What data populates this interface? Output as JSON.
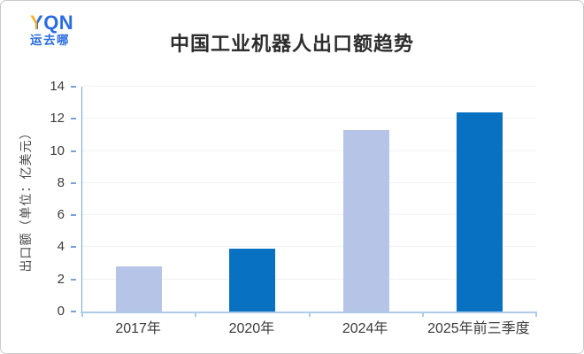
{
  "logo": {
    "mark_y": "Y",
    "mark_rest": "QN",
    "name_cn": "运去哪",
    "color_blue": "#2a6be2",
    "color_yellow": "#f5b226"
  },
  "header": {
    "title": "中国工业机器人出口额趋势"
  },
  "chart_data": {
    "type": "bar",
    "title": "中国工业机器人出口额趋势",
    "categories": [
      "2017年",
      "2020年",
      "2024年",
      "2025年前三季度"
    ],
    "values": [
      2.8,
      3.9,
      11.3,
      12.4
    ],
    "bar_colors": [
      "#b6c4e7",
      "#0871c1",
      "#b6c4e7",
      "#0871c1"
    ],
    "xlabel": "",
    "ylabel": "出口额（单位：亿美元）",
    "ylim": [
      0,
      14
    ],
    "yticks": [
      0,
      2,
      4,
      6,
      8,
      10,
      12,
      14
    ],
    "grid": true,
    "legend_position": "none"
  },
  "colors": {
    "axis_y": "#7ba2d6",
    "axis_x": "#aecbea",
    "gridline": "#f0f1f4",
    "tick_label": "#3c3c3c",
    "title_text": "#2d2d2d",
    "card_border": "#c9c9c9"
  }
}
